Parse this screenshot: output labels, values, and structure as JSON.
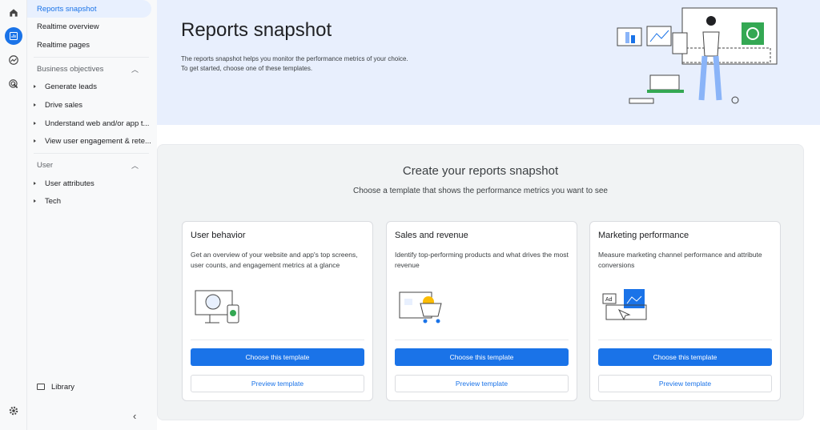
{
  "nav": {
    "items": [
      {
        "label": "Reports snapshot"
      },
      {
        "label": "Realtime overview"
      },
      {
        "label": "Realtime pages"
      }
    ],
    "business": {
      "label": "Business objectives",
      "items": [
        "Generate leads",
        "Drive sales",
        "Understand web and/or app t...",
        "View user engagement & rete..."
      ]
    },
    "user": {
      "label": "User",
      "items": [
        "User attributes",
        "Tech"
      ]
    },
    "library": "Library"
  },
  "header": {
    "title": "Reports snapshot",
    "desc1": "The reports snapshot helps you monitor the performance metrics of your choice.",
    "desc2": "To get started, choose one of these templates."
  },
  "main": {
    "title": "Create your reports snapshot",
    "subtitle": "Choose a template that shows the performance metrics you want to see",
    "cards": [
      {
        "title": "User behavior",
        "desc": "Get an overview of your website and app's top screens, user counts, and engagement metrics at a glance",
        "choose": "Choose this template",
        "preview": "Preview template"
      },
      {
        "title": "Sales and revenue",
        "desc": "Identify top-performing products and what drives the most revenue",
        "choose": "Choose this template",
        "preview": "Preview template"
      },
      {
        "title": "Marketing performance",
        "desc": "Measure marketing channel performance and attribute conversions",
        "choose": "Choose this template",
        "preview": "Preview template",
        "ad_label": "Ad"
      }
    ]
  },
  "colors": {
    "accent": "#1a73e8",
    "banner": "#e8effd"
  }
}
